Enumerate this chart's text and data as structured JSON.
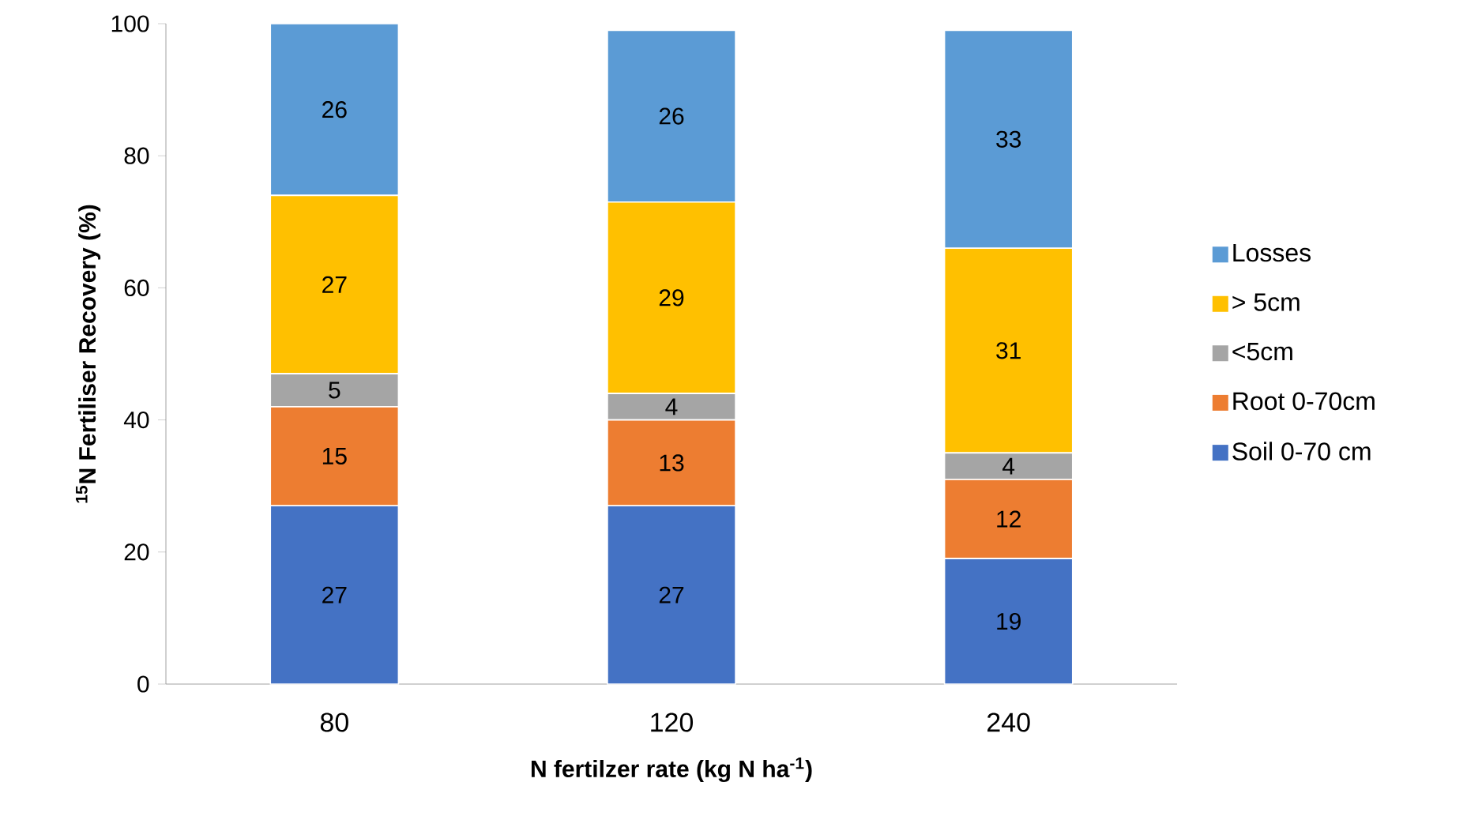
{
  "chart_data": {
    "type": "bar",
    "stacked": true,
    "data_labels": true,
    "xlabel": "N fertilzer rate (kg N ha$^{-1}$)",
    "ylabel": "$^{15}$N Fertiliser Recovery (%)",
    "categories": [
      "80",
      "120",
      "240"
    ],
    "ylim": [
      0,
      100
    ],
    "yticks": [
      0,
      20,
      40,
      60,
      80,
      100
    ],
    "grid": false,
    "legend": "right",
    "series": [
      {
        "name": "Soil 0-70 cm",
        "color": "#4472c4",
        "values": [
          27,
          27,
          19
        ]
      },
      {
        "name": "Root 0-70cm",
        "color": "#ed7d31",
        "values": [
          15,
          13,
          12
        ]
      },
      {
        "name": "<5cm",
        "color": "#a5a5a5",
        "values": [
          5,
          4,
          4
        ]
      },
      {
        "name": "> 5cm",
        "color": "#ffc000",
        "values": [
          27,
          29,
          31
        ]
      },
      {
        "name": "Losses",
        "color": "#5b9bd5",
        "values": [
          26,
          26,
          33
        ]
      }
    ]
  }
}
